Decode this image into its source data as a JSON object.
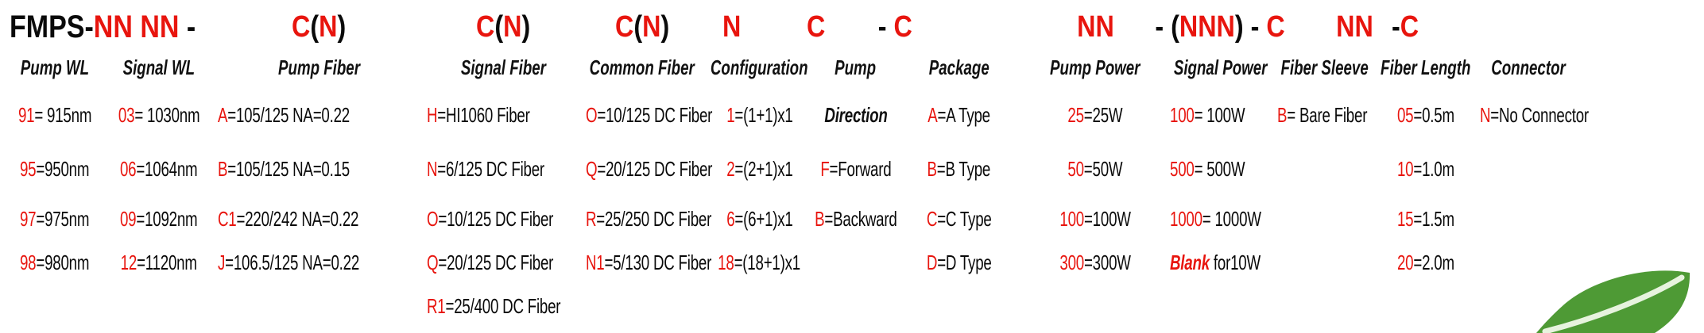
{
  "colors": {
    "red": "#e8150e",
    "black": "#0a0a0a",
    "leaf_green": "#4e9a35",
    "leaf_vein": "#e7f3de"
  },
  "part_number": {
    "prefix_segments": [
      {
        "t": "FMPS-",
        "red": false
      },
      {
        "t": "NN NN",
        "red": true
      },
      {
        "t": " - ",
        "red": false
      }
    ]
  },
  "logo": {
    "icon": "leaf"
  },
  "columns": [
    {
      "id": "pump-wl",
      "title": "Pump WL",
      "code": null,
      "entries": [
        {
          "code": "91",
          "text": "= 915nm"
        },
        {
          "code": "95",
          "text": "=950nm"
        },
        {
          "code": "97",
          "text": "=975nm"
        },
        {
          "code": "98",
          "text": "=980nm"
        },
        null
      ]
    },
    {
      "id": "signal-wl",
      "title": "Signal WL",
      "code": null,
      "entries": [
        {
          "code": "03",
          "text": "= 1030nm"
        },
        {
          "code": "06",
          "text": "=1064nm"
        },
        {
          "code": "09",
          "text": "=1092nm"
        },
        {
          "code": "12",
          "text": "=1120nm"
        },
        null
      ]
    },
    {
      "id": "pump-fiber",
      "title": "Pump Fiber",
      "code": [
        {
          "t": "C",
          "red": true
        },
        {
          "t": "(",
          "red": false
        },
        {
          "t": "N",
          "red": true
        },
        {
          "t": ")",
          "red": false
        }
      ],
      "entries": [
        {
          "code": "A",
          "text": "=105/125 NA=0.22"
        },
        {
          "code": "B",
          "text": "=105/125 NA=0.15"
        },
        {
          "code": "C1",
          "text": "=220/242 NA=0.22"
        },
        {
          "code": "J",
          "text": "=106.5/125 NA=0.22"
        },
        null
      ]
    },
    {
      "id": "signal-fiber",
      "title": "Signal Fiber",
      "code": [
        {
          "t": "C",
          "red": true
        },
        {
          "t": "(",
          "red": false
        },
        {
          "t": "N",
          "red": true
        },
        {
          "t": ")",
          "red": false
        }
      ],
      "entries": [
        {
          "code": "H",
          "text": "=HI1060 Fiber"
        },
        {
          "code": "N",
          "text": "=6/125 DC Fiber"
        },
        {
          "code": "O",
          "text": "=10/125 DC Fiber"
        },
        {
          "code": "Q",
          "text": "=20/125 DC Fiber"
        },
        {
          "code": "R1",
          "text": "=25/400 DC Fiber"
        }
      ]
    },
    {
      "id": "common-fiber",
      "title": "Common Fiber",
      "code": [
        {
          "t": "C",
          "red": true
        },
        {
          "t": "(",
          "red": false
        },
        {
          "t": "N",
          "red": true
        },
        {
          "t": ")",
          "red": false
        }
      ],
      "entries": [
        {
          "code": "O",
          "text": "=10/125 DC Fiber"
        },
        {
          "code": "Q",
          "text": "=20/125 DC Fiber"
        },
        {
          "code": "R",
          "text": "=25/250 DC Fiber"
        },
        {
          "code": "N1",
          "text": "=5/130 DC Fiber"
        },
        null
      ]
    },
    {
      "id": "configuration",
      "title": "Configuration",
      "code": [
        {
          "t": "N",
          "red": true
        }
      ],
      "entries": [
        {
          "code": "1",
          "text": "=(1+1)x1"
        },
        {
          "code": "2",
          "text": "=(2+1)x1"
        },
        {
          "code": "6",
          "text": "=(6+1)x1"
        },
        {
          "code": "18",
          "text": "=(18+1)x1"
        },
        null
      ]
    },
    {
      "id": "pump-direction",
      "title": "Pump",
      "code": [
        {
          "t": "C",
          "red": true
        }
      ],
      "entries": [
        {
          "label": "Direction",
          "style": "subtitle"
        },
        {
          "code": "F",
          "text": "=Forward"
        },
        {
          "code": "B",
          "text": "=Backward"
        },
        null,
        null
      ]
    },
    {
      "id": "package",
      "title": "Package",
      "code": [
        {
          "t": "- ",
          "red": false
        },
        {
          "t": "C",
          "red": true
        }
      ],
      "entries": [
        {
          "code": "A",
          "text": "=A Type"
        },
        {
          "code": "B",
          "text": "=B Type"
        },
        {
          "code": "C",
          "text": "=C Type"
        },
        {
          "code": "D",
          "text": "=D Type"
        },
        null
      ]
    },
    {
      "id": "pump-power",
      "title": "Pump Power",
      "code": [
        {
          "t": "NN",
          "red": true
        }
      ],
      "entries": [
        {
          "code": "25",
          "text": "=25W"
        },
        {
          "code": "50",
          "text": "=50W"
        },
        {
          "code": "100",
          "text": "=100W"
        },
        {
          "code": "300",
          "text": "=300W"
        },
        null
      ]
    },
    {
      "id": "signal-power",
      "title": "Signal Power",
      "code": [
        {
          "t": "- (",
          "red": false
        },
        {
          "t": "NNN",
          "red": true
        },
        {
          "t": ") - ",
          "red": false
        },
        {
          "t": "C",
          "red": true
        }
      ],
      "entries": [
        {
          "code": "100",
          "text": "= 100W"
        },
        {
          "code": "500",
          "text": "= 500W"
        },
        {
          "code": "1000",
          "text": "= 1000W"
        },
        {
          "blank": "Blank",
          "text": " for10W"
        },
        null
      ]
    },
    {
      "id": "fiber-sleeve",
      "title": "Fiber Sleeve",
      "code": null,
      "entries": [
        {
          "code": "B",
          "text": "= Bare Fiber"
        },
        null,
        null,
        null,
        null
      ]
    },
    {
      "id": "fiber-length",
      "title": "Fiber Length",
      "code": [
        {
          "t": "NN",
          "red": true
        }
      ],
      "entries": [
        {
          "code": "05",
          "text": "=0.5m"
        },
        {
          "code": "10",
          "text": "=1.0m"
        },
        {
          "code": "15",
          "text": "=1.5m"
        },
        {
          "code": "20",
          "text": "=2.0m"
        },
        null
      ]
    },
    {
      "id": "connector",
      "title": "Connector",
      "code": [
        {
          "t": "-",
          "red": false
        },
        {
          "t": "C",
          "red": true
        }
      ],
      "entries": [
        {
          "code": "N",
          "text": "=No Connector"
        },
        null,
        null,
        null,
        null
      ]
    }
  ]
}
